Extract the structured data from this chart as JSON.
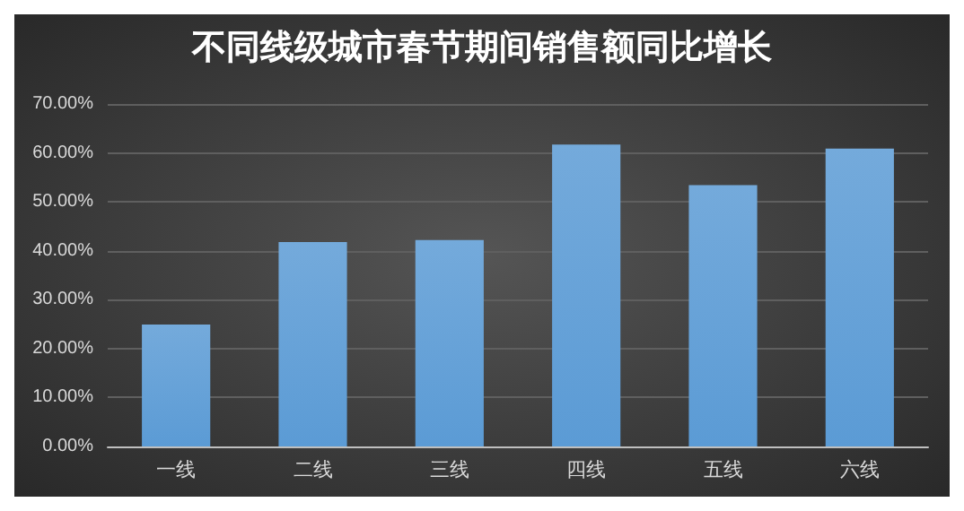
{
  "chart_data": {
    "type": "bar",
    "title": "不同线级城市春节期间销售额同比增长",
    "categories": [
      "一线",
      "二线",
      "三线",
      "四线",
      "五线",
      "六线"
    ],
    "values": [
      24.9,
      41.8,
      42.2,
      61.7,
      53.4,
      60.9
    ],
    "color": "#5b9bd5",
    "ylim": [
      0,
      70
    ],
    "yticks": [
      {
        "value": 0,
        "label": "0.00%"
      },
      {
        "value": 10,
        "label": "10.00%"
      },
      {
        "value": 20,
        "label": "20.00%"
      },
      {
        "value": 30,
        "label": "30.00%"
      },
      {
        "value": 40,
        "label": "40.00%"
      },
      {
        "value": 50,
        "label": "50.00%"
      },
      {
        "value": 60,
        "label": "60.00%"
      },
      {
        "value": 70,
        "label": "70.00%"
      }
    ],
    "grid": true
  }
}
